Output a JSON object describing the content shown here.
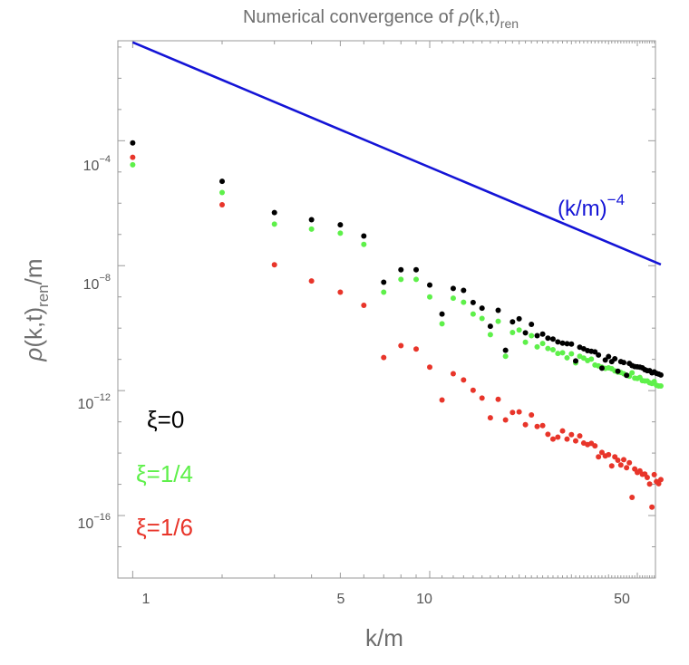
{
  "chart_data": {
    "type": "scatter",
    "scale": "log-log",
    "title": {
      "prefix": "Numerical convergence of ",
      "rho": "ρ",
      "args": "(k,t)",
      "sub": "ren"
    },
    "xlabel": "k/m",
    "ylabel": {
      "rho": "ρ",
      "args": "(k,t)",
      "sub": "ren",
      "tail": "/m"
    },
    "xlim_log10": [
      -0.05,
      1.76
    ],
    "ylim_log10": [
      -18.0,
      -0.8
    ],
    "x_ticks": [
      {
        "value": 1,
        "label": "1"
      },
      {
        "value": 5,
        "label": "5"
      },
      {
        "value": 10,
        "label": "10"
      },
      {
        "value": 50,
        "label": "50"
      }
    ],
    "y_ticks": [
      {
        "exp": -4,
        "base": "10",
        "label": "−4"
      },
      {
        "exp": -8,
        "base": "10",
        "label": "−8"
      },
      {
        "exp": -12,
        "base": "10",
        "label": "−12"
      },
      {
        "exp": -16,
        "base": "10",
        "label": "−16"
      }
    ],
    "reference_line": {
      "label_base": "(k/m)",
      "label_exp": "−4",
      "color": "#1414d6",
      "log10_prefactor": -0.85,
      "slope": -4,
      "x_range": [
        1,
        60
      ]
    },
    "series": [
      {
        "name": "ξ=0",
        "color": "#000000",
        "x": [
          1,
          2,
          3,
          4,
          5,
          6,
          7,
          8,
          9,
          10,
          11,
          12,
          13,
          14,
          15,
          16,
          17,
          18,
          19,
          20,
          21,
          22,
          23,
          24,
          25,
          26,
          27,
          28,
          29,
          30,
          31,
          32,
          33,
          34,
          35,
          36,
          37,
          38,
          39,
          40,
          41,
          42,
          43,
          44,
          45,
          46,
          47,
          48,
          49,
          50,
          51,
          52,
          53,
          54,
          55,
          56,
          57,
          58,
          59,
          60
        ],
        "log10_values": [
          -4.07,
          -5.3,
          -6.3,
          -6.53,
          -6.69,
          -7.05,
          -8.53,
          -8.13,
          -8.13,
          -8.62,
          -9.55,
          -8.73,
          -8.79,
          -9.18,
          -9.36,
          -9.94,
          -9.43,
          -10.71,
          -9.8,
          -9.7,
          -10.15,
          -9.88,
          -10.24,
          -10.19,
          -10.32,
          -10.35,
          -10.44,
          -10.48,
          -10.5,
          -10.51,
          -11.05,
          -10.61,
          -10.66,
          -10.72,
          -10.74,
          -10.76,
          -10.86,
          -11.28,
          -11.02,
          -10.91,
          -11.07,
          -10.98,
          -11.38,
          -11.07,
          -11.1,
          -11.51,
          -11.13,
          -11.2,
          -11.23,
          -11.24,
          -11.25,
          -11.27,
          -11.33,
          -11.36,
          -11.36,
          -11.43,
          -11.4,
          -11.45,
          -11.47,
          -11.5
        ]
      },
      {
        "name": "ξ=1/4",
        "color": "#5ef04a",
        "x": [
          1,
          2,
          3,
          4,
          5,
          6,
          7,
          8,
          9,
          10,
          11,
          12,
          13,
          14,
          15,
          16,
          17,
          18,
          19,
          20,
          21,
          22,
          23,
          24,
          25,
          26,
          27,
          28,
          29,
          30,
          31,
          32,
          33,
          34,
          35,
          36,
          37,
          38,
          39,
          40,
          41,
          42,
          43,
          44,
          45,
          46,
          47,
          48,
          49,
          50,
          51,
          52,
          53,
          54,
          55,
          56,
          57,
          58,
          59,
          60
        ],
        "log10_values": [
          -4.77,
          -5.66,
          -6.67,
          -6.83,
          -6.96,
          -7.32,
          -8.85,
          -8.44,
          -8.44,
          -9.0,
          -9.86,
          -9.04,
          -9.17,
          -9.55,
          -9.69,
          -10.21,
          -9.78,
          -10.9,
          -10.14,
          -10.06,
          -10.45,
          -10.24,
          -10.6,
          -10.49,
          -10.65,
          -10.69,
          -10.81,
          -10.79,
          -10.95,
          -10.82,
          -11.11,
          -10.9,
          -10.96,
          -11.04,
          -10.99,
          -11.18,
          -11.21,
          -11.25,
          -11.29,
          -11.27,
          -11.3,
          -11.37,
          -11.41,
          -11.42,
          -11.46,
          -11.51,
          -11.54,
          -11.43,
          -11.6,
          -11.61,
          -11.58,
          -11.68,
          -11.69,
          -11.69,
          -11.75,
          -11.77,
          -11.71,
          -11.83,
          -11.85,
          -11.85
        ]
      },
      {
        "name": "ξ=1/6",
        "color": "#e8352a",
        "x": [
          1,
          2,
          3,
          4,
          5,
          6,
          7,
          8,
          9,
          10,
          11,
          12,
          13,
          14,
          15,
          16,
          17,
          18,
          19,
          20,
          21,
          22,
          23,
          24,
          25,
          26,
          27,
          28,
          29,
          30,
          31,
          32,
          33,
          34,
          35,
          36,
          37,
          38,
          39,
          40,
          41,
          42,
          43,
          44,
          45,
          46,
          47,
          48,
          49,
          50,
          51,
          52,
          53,
          54,
          55,
          56,
          57,
          58,
          59,
          60
        ],
        "log10_values": [
          -4.53,
          -6.05,
          -7.97,
          -8.49,
          -8.85,
          -9.27,
          -10.94,
          -10.56,
          -10.67,
          -11.25,
          -12.3,
          -11.46,
          -11.66,
          -11.99,
          -12.24,
          -12.87,
          -12.28,
          -12.94,
          -12.7,
          -12.68,
          -13.09,
          -12.78,
          -13.15,
          -13.12,
          -13.4,
          -13.55,
          -13.49,
          -13.29,
          -13.55,
          -13.41,
          -13.61,
          -13.45,
          -13.68,
          -13.73,
          -13.69,
          -13.77,
          -14.12,
          -13.98,
          -14.09,
          -14.05,
          -14.41,
          -14.12,
          -14.23,
          -14.38,
          -14.21,
          -14.47,
          -14.31,
          -15.42,
          -14.51,
          -14.62,
          -14.57,
          -14.68,
          -14.67,
          -14.78,
          -14.99,
          -15.73,
          -14.69,
          -14.91,
          -14.98,
          -14.85
        ]
      }
    ]
  }
}
